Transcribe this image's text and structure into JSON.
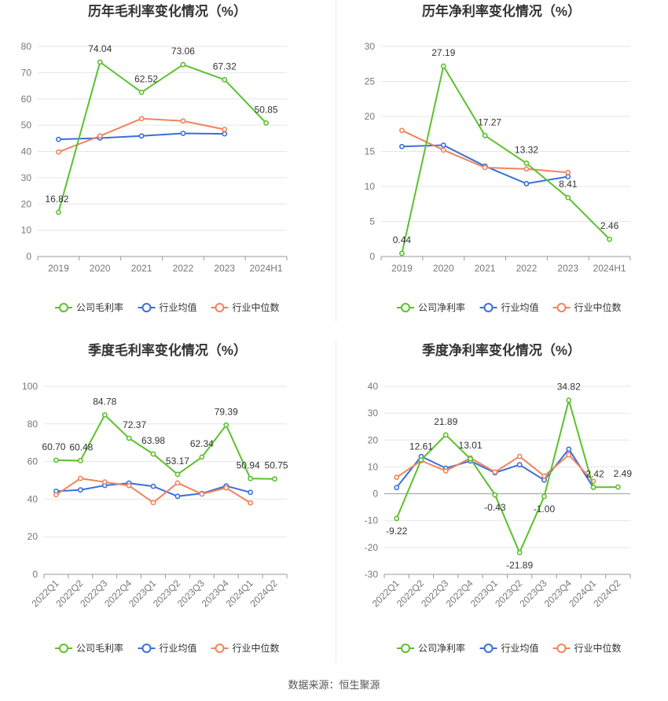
{
  "source": "数据来源：恒生聚源",
  "charts": [
    {
      "title": "历年毛利率变化情况（%）",
      "legend": [
        "公司毛利率",
        "行业均值",
        "行业中位数"
      ]
    },
    {
      "title": "历年净利率变化情况（%）",
      "legend": [
        "公司净利率",
        "行业均值",
        "行业中位数"
      ]
    },
    {
      "title": "季度毛利率变化情况（%）",
      "legend": [
        "公司毛利率",
        "行业均值",
        "行业中位数"
      ]
    },
    {
      "title": "季度净利率变化情况（%）",
      "legend": [
        "公司净利率",
        "行业均值",
        "行业中位数"
      ]
    }
  ],
  "colors": {
    "company": "#5cc12c",
    "avg": "#3a6fd8",
    "median": "#f0845d",
    "grid": "#e6e6e6",
    "axis": "#999999"
  },
  "chart_data": [
    {
      "type": "line",
      "title": "历年毛利率变化情况（%）",
      "categories": [
        "2019",
        "2020",
        "2021",
        "2022",
        "2023",
        "2024H1"
      ],
      "ylim": [
        0,
        80
      ],
      "yticks": [
        0,
        10,
        20,
        30,
        40,
        50,
        60,
        70,
        80
      ],
      "series": [
        {
          "name": "公司毛利率",
          "values": [
            16.82,
            74.04,
            62.52,
            73.06,
            67.32,
            50.85
          ],
          "labels": [
            "16.82",
            "74.04",
            "62.52",
            "73.06",
            "67.32",
            "50.85"
          ]
        },
        {
          "name": "行业均值",
          "values": [
            44.6,
            45.1,
            45.9,
            46.9,
            46.7,
            null
          ]
        },
        {
          "name": "行业中位数",
          "values": [
            39.8,
            45.9,
            52.5,
            51.6,
            48.4,
            null
          ]
        }
      ]
    },
    {
      "type": "line",
      "title": "历年净利率变化情况（%）",
      "categories": [
        "2019",
        "2020",
        "2021",
        "2022",
        "2023",
        "2024H1"
      ],
      "ylim": [
        0,
        30
      ],
      "yticks": [
        0,
        5,
        10,
        15,
        20,
        25,
        30
      ],
      "series": [
        {
          "name": "公司净利率",
          "values": [
            0.44,
            27.19,
            17.27,
            13.32,
            8.41,
            2.46
          ],
          "labels": [
            "0.44",
            "27.19",
            "17.27",
            "13.32",
            "8.41",
            "2.46"
          ]
        },
        {
          "name": "行业均值",
          "values": [
            15.7,
            15.9,
            12.9,
            10.4,
            11.4,
            null
          ]
        },
        {
          "name": "行业中位数",
          "values": [
            18.0,
            15.2,
            12.7,
            12.5,
            12.0,
            null
          ]
        }
      ]
    },
    {
      "type": "line",
      "title": "季度毛利率变化情况（%）",
      "categories": [
        "2022Q1",
        "2022Q2",
        "2022Q3",
        "2022Q4",
        "2023Q1",
        "2023Q2",
        "2023Q3",
        "2023Q4",
        "2024Q1",
        "2024Q2"
      ],
      "ylim": [
        0,
        100
      ],
      "yticks": [
        0,
        20,
        40,
        60,
        80,
        100
      ],
      "series": [
        {
          "name": "公司毛利率",
          "values": [
            60.7,
            60.48,
            84.78,
            72.37,
            63.98,
            53.17,
            62.34,
            79.39,
            50.94,
            50.75
          ],
          "labels": [
            "60.70",
            "60.48",
            "84.78",
            "72.37",
            "63.98",
            "53.17",
            "62.34",
            "79.39",
            "50.94",
            "50.75"
          ]
        },
        {
          "name": "行业均值",
          "values": [
            44.2,
            44.9,
            47.3,
            48.5,
            46.8,
            41.5,
            43.0,
            47.0,
            43.6,
            null
          ]
        },
        {
          "name": "行业中位数",
          "values": [
            42.3,
            51.0,
            49.1,
            47.2,
            38.1,
            48.6,
            42.7,
            46.0,
            38.0,
            null
          ]
        }
      ]
    },
    {
      "type": "line",
      "title": "季度净利率变化情况（%）",
      "categories": [
        "2022Q1",
        "2022Q2",
        "2022Q3",
        "2022Q4",
        "2023Q1",
        "2023Q2",
        "2023Q3",
        "2023Q4",
        "2024Q1",
        "2024Q2"
      ],
      "ylim": [
        -30,
        40
      ],
      "yticks": [
        -30,
        -20,
        -10,
        0,
        10,
        20,
        30,
        40
      ],
      "series": [
        {
          "name": "公司净利率",
          "values": [
            -9.22,
            12.61,
            21.89,
            13.01,
            -0.43,
            -21.89,
            -1.0,
            34.82,
            2.42,
            2.49
          ],
          "labels": [
            "-9.22",
            "12.61",
            "21.89",
            "13.01",
            "-0.43",
            "-21.89",
            "-1.00",
            "34.82",
            "2.42",
            "2.49"
          ]
        },
        {
          "name": "行业均值",
          "values": [
            2.3,
            13.9,
            9.5,
            12.2,
            7.8,
            10.8,
            5.1,
            16.6,
            2.4,
            null
          ]
        },
        {
          "name": "行业中位数",
          "values": [
            6.1,
            12.3,
            8.5,
            13.3,
            8.1,
            13.9,
            6.6,
            14.5,
            4.6,
            null
          ]
        }
      ]
    }
  ]
}
